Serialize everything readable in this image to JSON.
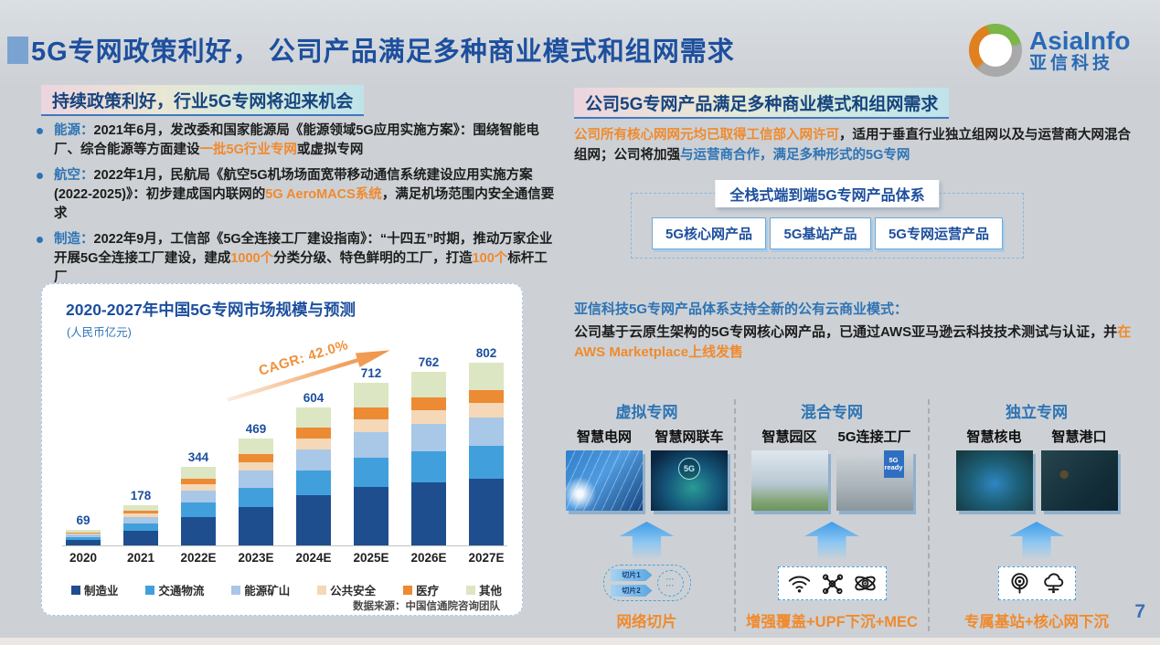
{
  "slide": {
    "title": "5G专网政策利好， 公司产品满足多种商业模式和组网需求",
    "page_number": "7",
    "logo": {
      "name": "AsiaInfo",
      "cn": "亚信科技"
    }
  },
  "left": {
    "header": "持续政策利好，行业5G专网将迎来机会",
    "bullets": [
      {
        "segments": [
          {
            "text": "能源：",
            "style": "label"
          },
          {
            "text": "2021年6月，发改委和国家能源局《能源领域5G应用实施方案》：围绕智能电厂、综合能源等方面建设",
            "style": "plain"
          },
          {
            "text": "一批5G行业专网",
            "style": "orange"
          },
          {
            "text": "或虚拟专网",
            "style": "plain"
          }
        ]
      },
      {
        "segments": [
          {
            "text": "航空：",
            "style": "label"
          },
          {
            "text": "2022年1月，民航局《航空5G机场场面宽带移动通信系统建设应用实施方案(2022-2025)》：初步建成国内联网的",
            "style": "plain"
          },
          {
            "text": "5G AeroMACS系统",
            "style": "orange"
          },
          {
            "text": "，满足机场范围内安全通信要求",
            "style": "plain"
          }
        ]
      },
      {
        "segments": [
          {
            "text": "制造：",
            "style": "label"
          },
          {
            "text": "2022年9月，工信部《5G全连接工厂建设指南》：“十四五”时期，推动万家企业开展5G全连接工厂建设，建成",
            "style": "plain"
          },
          {
            "text": "1000个",
            "style": "orange"
          },
          {
            "text": "分类分级、特色鲜明的工厂，打造",
            "style": "plain"
          },
          {
            "text": "100个",
            "style": "orange"
          },
          {
            "text": "标杆工厂",
            "style": "plain"
          }
        ]
      }
    ]
  },
  "chart_data": {
    "type": "bar",
    "stacked": true,
    "title": "2020-2027年中国5G专网市场规模与预测",
    "subtitle": "(人民币亿元)",
    "categories": [
      "2020",
      "2021",
      "2022E",
      "2023E",
      "2024E",
      "2025E",
      "2026E",
      "2027E"
    ],
    "totals": [
      69,
      178,
      344,
      469,
      604,
      712,
      762,
      802
    ],
    "series": [
      {
        "name": "制造业",
        "color": "#1f4e8f",
        "values": [
          25,
          65,
          125,
          170,
          219,
          258,
          277,
          291
        ]
      },
      {
        "name": "交通物流",
        "color": "#41a0dc",
        "values": [
          12,
          32,
          62,
          84,
          109,
          128,
          137,
          144
        ]
      },
      {
        "name": "能源矿山",
        "color": "#a9c7e6",
        "values": [
          11,
          28,
          54,
          73,
          94,
          111,
          119,
          125
        ]
      },
      {
        "name": "公共安全",
        "color": "#f4d8b8",
        "values": [
          5,
          14,
          27,
          37,
          48,
          56,
          60,
          63
        ]
      },
      {
        "name": "医疗",
        "color": "#ec8b33",
        "values": [
          5,
          13,
          25,
          35,
          45,
          53,
          56,
          59
        ]
      },
      {
        "name": "其他",
        "color": "#dce6c3",
        "values": [
          11,
          26,
          51,
          70,
          89,
          106,
          113,
          120
        ]
      }
    ],
    "annotation": "CAGR: 42.0%",
    "source": "数据来源：中国信通院咨询团队",
    "ylim": [
      0,
      802
    ],
    "legend_position": "bottom",
    "grid": false
  },
  "right": {
    "header": "公司5G专网产品满足多种商业模式和组网需求",
    "intro": {
      "segments": [
        {
          "text": "公司所有核心网网元均已取得工信部入网许可",
          "style": "orange"
        },
        {
          "text": "，适用于垂直行业独立组网以及与运营商大网混合组网；公司将加强",
          "style": "plain"
        },
        {
          "text": "与运营商合作，满足多种形式的5G专网",
          "style": "blue"
        }
      ]
    },
    "product_system": {
      "title": "全栈式端到端5G专网产品体系",
      "products": [
        "5G核心网产品",
        "5G基站产品",
        "5G专网运营产品"
      ]
    },
    "cloud": {
      "heading": "亚信科技5G专网产品体系支持全新的公有云商业模式：",
      "segments": [
        {
          "text": "公司基于云原生架构的5G专网核心网产品，已通过AWS亚马逊云科技技术测试与认证，并",
          "style": "plain"
        },
        {
          "text": "在AWS Marketplace上线发售",
          "style": "orange"
        }
      ]
    },
    "network_modes": [
      {
        "title": "虚拟专网",
        "cases": [
          {
            "label": "智慧电网",
            "photo": "smart-grid"
          },
          {
            "label": "智慧网联车",
            "photo": "connected-car",
            "badge": "5G"
          }
        ],
        "icons": [
          "network-slice"
        ],
        "tech": "网络切片"
      },
      {
        "title": "混合专网",
        "cases": [
          {
            "label": "智慧园区",
            "photo": "smart-campus"
          },
          {
            "label": "5G连接工厂",
            "photo": "5g-factory",
            "banner": "5G ready"
          }
        ],
        "icons": [
          "wifi",
          "molecule",
          "atom"
        ],
        "tech": "增强覆盖+UPF下沉+MEC"
      },
      {
        "title": "独立专网",
        "cases": [
          {
            "label": "智慧核电",
            "photo": "nuclear-plant"
          },
          {
            "label": "智慧港口",
            "photo": "smart-port"
          }
        ],
        "icons": [
          "antenna",
          "cloud-network"
        ],
        "tech": "专属基站+核心网下沉"
      }
    ],
    "slice_labels": [
      "切片1",
      "切片2"
    ],
    "slice_ellipsis": "···"
  },
  "colors": {
    "title_blue": "#1d4f9e",
    "accent_blue": "#2e74b5",
    "accent_orange": "#f08a2d",
    "background": "#cdd1d5"
  }
}
